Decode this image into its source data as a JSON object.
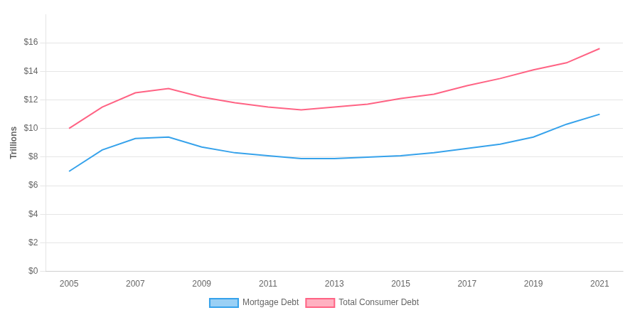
{
  "chart_data": {
    "type": "line",
    "ylabel": "Trillions",
    "x": [
      2005,
      2006,
      2007,
      2008,
      2009,
      2010,
      2011,
      2012,
      2013,
      2014,
      2015,
      2016,
      2017,
      2018,
      2019,
      2020,
      2021
    ],
    "series": [
      {
        "name": "Mortgage Debt",
        "values": [
          7.0,
          8.5,
          9.3,
          9.4,
          8.7,
          8.3,
          8.1,
          7.9,
          7.9,
          8.0,
          8.1,
          8.3,
          8.6,
          8.9,
          9.4,
          10.3,
          11.0
        ]
      },
      {
        "name": "Total Consumer Debt",
        "values": [
          10.0,
          11.5,
          12.5,
          12.8,
          12.2,
          11.8,
          11.5,
          11.3,
          11.5,
          11.7,
          12.1,
          12.4,
          13.0,
          13.5,
          14.1,
          14.6,
          15.6
        ]
      }
    ],
    "xlim": [
      2004.3,
      2021.7
    ],
    "xticks": [
      2005,
      2007,
      2009,
      2011,
      2013,
      2015,
      2017,
      2019,
      2021
    ],
    "ylim": [
      0,
      18
    ],
    "yticks": [
      {
        "value": 0,
        "label": "$0"
      },
      {
        "value": 2,
        "label": "$2"
      },
      {
        "value": 4,
        "label": "$4"
      },
      {
        "value": 6,
        "label": "$6"
      },
      {
        "value": 8,
        "label": "$8"
      },
      {
        "value": 10,
        "label": "$10"
      },
      {
        "value": 12,
        "label": "$12"
      },
      {
        "value": 14,
        "label": "$14"
      },
      {
        "value": 16,
        "label": "$16"
      }
    ],
    "grid": "y",
    "legend": "bottom"
  }
}
